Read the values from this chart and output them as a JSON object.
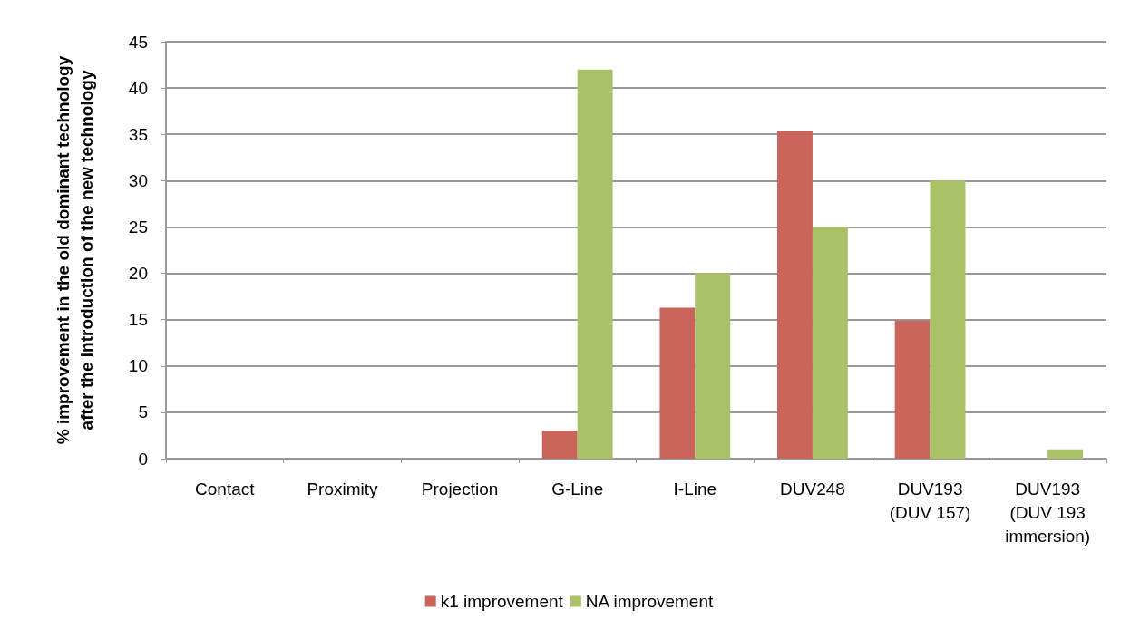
{
  "chart_data": {
    "type": "bar",
    "ylabel": "% improvement in the old dominant technology\nafter the introduction of the new technology",
    "categories": [
      "Contact",
      "Proximity",
      "Projection",
      "G-Line",
      "I-Line",
      "DUV248",
      "DUV193\n(DUV 157)",
      "DUV193\n(DUV 193\nimmersion)"
    ],
    "series": [
      {
        "name": "k1 improvement",
        "color": "#c9655b",
        "values": [
          0,
          0,
          0,
          3,
          16.3,
          35.4,
          14.9,
          0
        ]
      },
      {
        "name": "NA improvement",
        "color": "#a9c167",
        "values": [
          0,
          0,
          0,
          42,
          20,
          25,
          30,
          1
        ]
      }
    ],
    "ylim": [
      0,
      45
    ],
    "yticks": [
      0,
      5,
      10,
      15,
      20,
      25,
      30,
      35,
      40,
      45
    ],
    "grid": "y",
    "legend": "bottom"
  }
}
